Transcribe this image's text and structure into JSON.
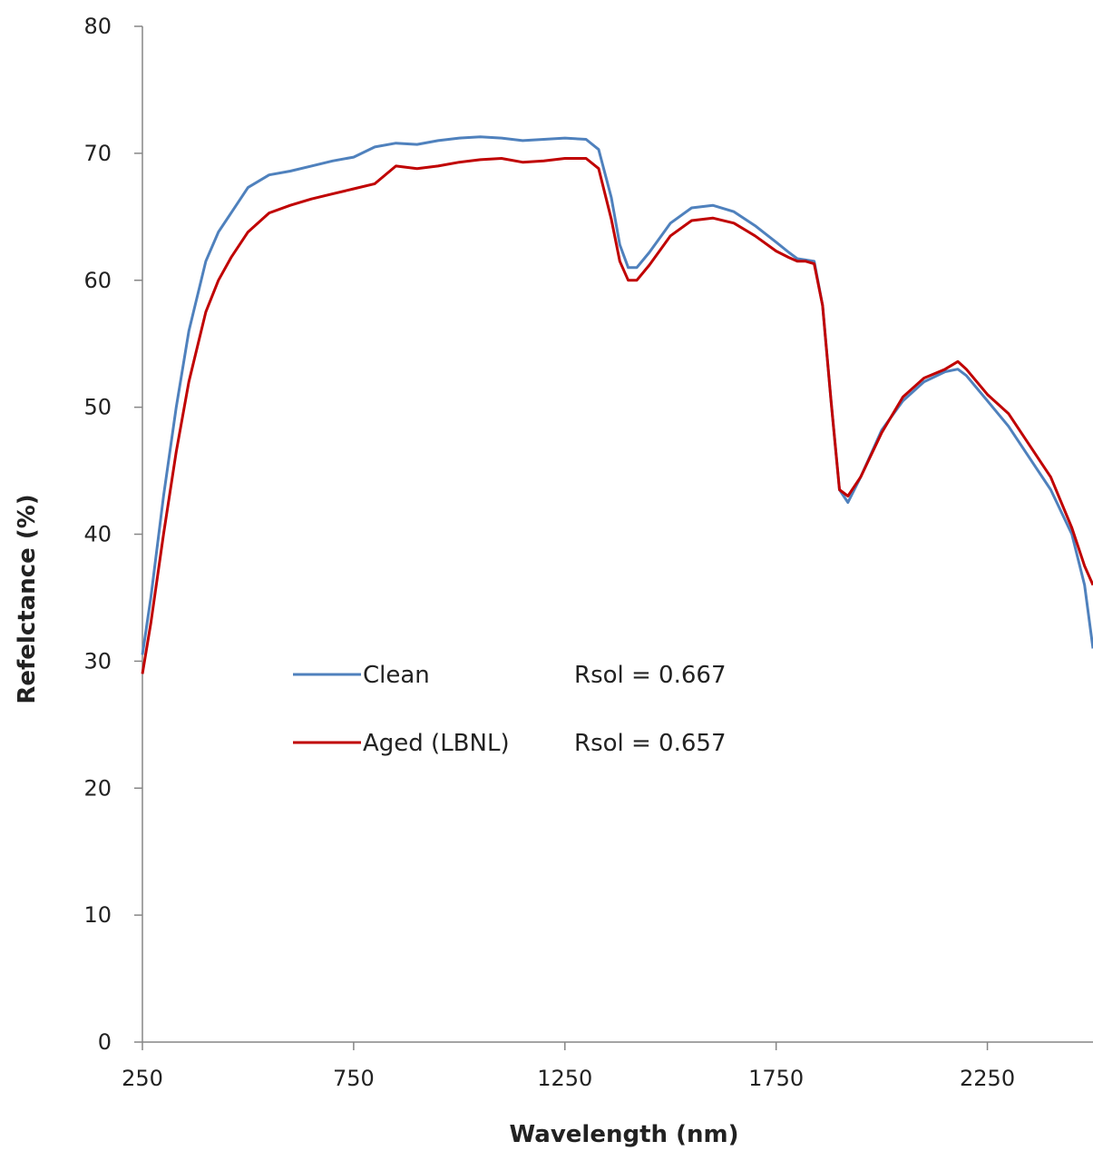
{
  "chart_data": {
    "type": "line",
    "title": "",
    "xlabel": "Wavelength (nm)",
    "ylabel": "Refelctance (%)",
    "xlim": [
      250,
      2500
    ],
    "ylim": [
      0,
      80
    ],
    "x_ticks": [
      250,
      750,
      1250,
      1750,
      2250
    ],
    "y_ticks": [
      0,
      10,
      20,
      30,
      40,
      50,
      60,
      70,
      80
    ],
    "grid": false,
    "legend_position": "center-left",
    "series": [
      {
        "name": "Clean",
        "annotation": "Rsol = 0.667",
        "color": "#4F81BD",
        "x": [
          250,
          270,
          300,
          330,
          360,
          400,
          430,
          460,
          500,
          550,
          600,
          650,
          700,
          750,
          800,
          850,
          900,
          950,
          1000,
          1050,
          1100,
          1150,
          1200,
          1250,
          1300,
          1330,
          1360,
          1380,
          1400,
          1420,
          1450,
          1500,
          1550,
          1600,
          1650,
          1700,
          1750,
          1780,
          1800,
          1820,
          1840,
          1860,
          1880,
          1900,
          1920,
          1950,
          2000,
          2050,
          2100,
          2150,
          2180,
          2200,
          2250,
          2300,
          2350,
          2400,
          2450,
          2480,
          2500
        ],
        "y": [
          30.5,
          35,
          43,
          50,
          56,
          61.5,
          63.8,
          65.3,
          67.3,
          68.3,
          68.6,
          69,
          69.4,
          69.7,
          70.5,
          70.8,
          70.7,
          71,
          71.2,
          71.3,
          71.2,
          71,
          71.1,
          71.2,
          71.1,
          70.3,
          66.5,
          62.8,
          61,
          61,
          62.2,
          64.5,
          65.7,
          65.9,
          65.4,
          64.3,
          63,
          62.2,
          61.7,
          61.6,
          61.5,
          58,
          50.5,
          43.5,
          42.5,
          44.5,
          48.2,
          50.5,
          52,
          52.8,
          53,
          52.5,
          50.5,
          48.5,
          46,
          43.5,
          40,
          36,
          31
        ]
      },
      {
        "name": "Aged (LBNL)",
        "annotation": "Rsol = 0.657",
        "color": "#C00000",
        "x": [
          250,
          270,
          300,
          330,
          360,
          400,
          430,
          460,
          500,
          550,
          600,
          650,
          700,
          750,
          800,
          850,
          900,
          950,
          1000,
          1050,
          1100,
          1150,
          1200,
          1250,
          1300,
          1330,
          1360,
          1380,
          1400,
          1420,
          1450,
          1500,
          1550,
          1600,
          1650,
          1700,
          1750,
          1780,
          1800,
          1820,
          1840,
          1860,
          1880,
          1900,
          1920,
          1950,
          2000,
          2050,
          2100,
          2150,
          2180,
          2200,
          2250,
          2300,
          2350,
          2400,
          2450,
          2480,
          2500
        ],
        "y": [
          29,
          33,
          40,
          46.5,
          52,
          57.5,
          60,
          61.8,
          63.8,
          65.3,
          65.9,
          66.4,
          66.8,
          67.2,
          67.6,
          69,
          68.8,
          69,
          69.3,
          69.5,
          69.6,
          69.3,
          69.4,
          69.6,
          69.6,
          68.8,
          64.8,
          61.5,
          60,
          60,
          61.2,
          63.5,
          64.7,
          64.9,
          64.5,
          63.5,
          62.3,
          61.8,
          61.5,
          61.5,
          61.3,
          58,
          50.5,
          43.5,
          43,
          44.5,
          48,
          50.8,
          52.3,
          53,
          53.6,
          53,
          51,
          49.5,
          47,
          44.5,
          40.5,
          37.5,
          36
        ]
      }
    ]
  }
}
